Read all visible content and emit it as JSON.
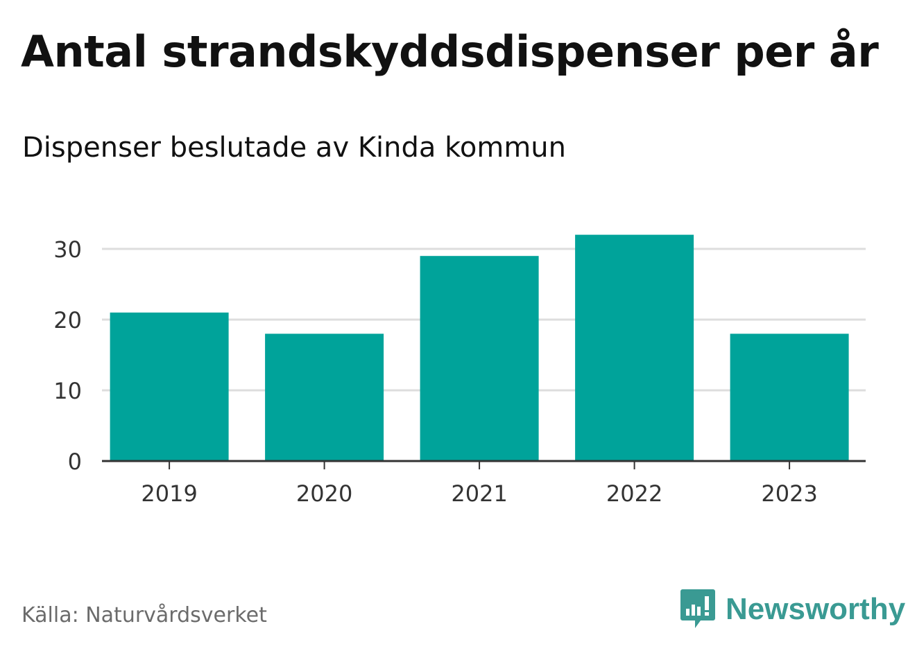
{
  "header": {
    "title": "Antal strandskyddsdispenser per år",
    "subtitle": "Dispenser beslutade av Kinda kommun"
  },
  "footer": {
    "source": "Källa: Naturvårdsverket",
    "logo_text": "Newsworthy",
    "logo_icon": "newsworthy-chart-bubble-icon"
  },
  "colors": {
    "bar": "#00a39a",
    "grid": "#dddddd",
    "axis": "#333333",
    "tick_text": "#333333",
    "logo": "#3a9a93"
  },
  "chart_data": {
    "type": "bar",
    "title": "Antal strandskyddsdispenser per år",
    "subtitle": "Dispenser beslutade av Kinda kommun",
    "categories": [
      "2019",
      "2020",
      "2021",
      "2022",
      "2023"
    ],
    "values": [
      21,
      18,
      29,
      32,
      18
    ],
    "xlabel": "",
    "ylabel": "",
    "ylim": [
      0,
      32
    ],
    "yticks": [
      0,
      10,
      20,
      30
    ],
    "grid": true,
    "legend": "none"
  }
}
